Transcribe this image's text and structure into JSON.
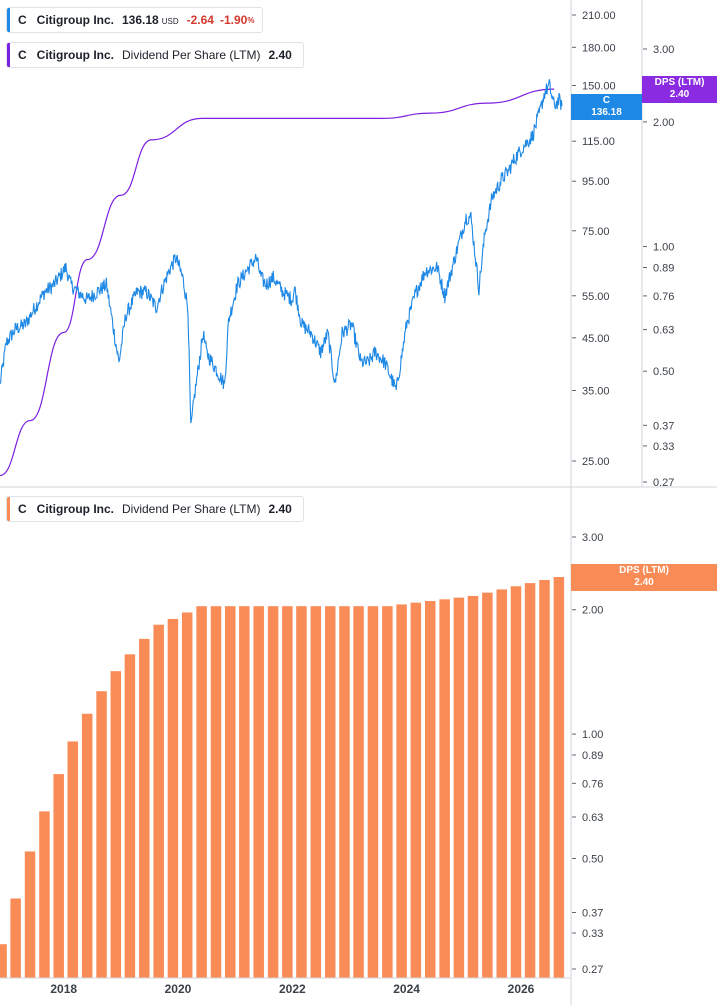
{
  "legend_price": {
    "ticker": "C",
    "name": "Citigroup Inc.",
    "value": "136.18",
    "currency": "USD",
    "change": "-2.64",
    "change_pct": "-1.90",
    "pct_sign": "%",
    "color": "#1e88e5"
  },
  "legend_dps_top": {
    "ticker": "C",
    "name": "Citigroup Inc.",
    "metric": "Dividend Per Share (LTM)",
    "value": "2.40",
    "color": "#7b1fe0"
  },
  "legend_dps_bottom": {
    "ticker": "C",
    "name": "Citigroup Inc.",
    "metric": "Dividend Per Share (LTM)",
    "value": "2.40",
    "color": "#f98b57"
  },
  "tags": {
    "price": {
      "label": "C",
      "value": "136.18",
      "color": "#1e88e5"
    },
    "dps_top": {
      "label": "DPS (LTM)",
      "value": "2.40",
      "color": "#8a2be2"
    },
    "dps_bottom": {
      "label": "DPS (LTM)",
      "value": "2.40",
      "color": "#f98b57"
    }
  },
  "chart_data": [
    {
      "type": "line",
      "xlabel": "",
      "ylabel": "",
      "x_range": [
        "2016-11-20",
        "2026-11-10"
      ],
      "y_scale": "log",
      "price_ylim": [
        22,
        240
      ],
      "price_ticks": [
        "210.00",
        "180.00",
        "150.00",
        "115.00",
        "95.00",
        "75.00",
        "55.00",
        "45.00",
        "35.00",
        "25.00"
      ],
      "dps_ylim": [
        0.26,
        3.5
      ],
      "dps_ticks": [
        "3.00",
        "2.00",
        "1.00",
        "0.89",
        "0.76",
        "0.63",
        "0.50",
        "0.37",
        "0.33",
        "0.27"
      ],
      "series": [
        {
          "name": "Citigroup Inc.",
          "color": "#1e88e5",
          "points": [
            [
              "2016-11-20",
              36
            ],
            [
              "2016-12-31",
              44
            ],
            [
              "2017-03-01",
              47
            ],
            [
              "2017-05-01",
              48
            ],
            [
              "2017-07-01",
              52
            ],
            [
              "2017-09-01",
              56
            ],
            [
              "2017-11-01",
              58
            ],
            [
              "2018-01-15",
              63
            ],
            [
              "2018-02-15",
              58
            ],
            [
              "2018-04-01",
              56
            ],
            [
              "2018-06-01",
              54
            ],
            [
              "2018-08-01",
              56
            ],
            [
              "2018-10-01",
              58
            ],
            [
              "2018-12-20",
              40
            ],
            [
              "2019-02-01",
              50
            ],
            [
              "2019-04-15",
              56
            ],
            [
              "2019-06-15",
              56
            ],
            [
              "2019-08-15",
              52
            ],
            [
              "2019-10-01",
              58
            ],
            [
              "2019-11-15",
              63
            ],
            [
              "2019-12-20",
              66
            ],
            [
              "2020-01-31",
              60
            ],
            [
              "2020-03-05",
              52
            ],
            [
              "2020-03-23",
              29
            ],
            [
              "2020-04-15",
              34
            ],
            [
              "2020-06-10",
              46
            ],
            [
              "2020-07-01",
              42
            ],
            [
              "2020-09-15",
              38
            ],
            [
              "2020-10-25",
              36
            ],
            [
              "2020-11-20",
              49
            ],
            [
              "2021-01-15",
              58
            ],
            [
              "2021-03-15",
              62
            ],
            [
              "2021-05-15",
              66
            ],
            [
              "2021-06-15",
              60
            ],
            [
              "2021-07-15",
              58
            ],
            [
              "2021-09-01",
              60
            ],
            [
              "2021-11-01",
              56
            ],
            [
              "2022-01-01",
              54
            ],
            [
              "2022-01-15",
              57
            ],
            [
              "2022-03-01",
              48
            ],
            [
              "2022-05-01",
              46
            ],
            [
              "2022-07-01",
              42
            ],
            [
              "2022-08-15",
              46
            ],
            [
              "2022-10-01",
              36
            ],
            [
              "2022-11-15",
              46
            ],
            [
              "2023-01-15",
              48
            ],
            [
              "2023-03-15",
              40
            ],
            [
              "2023-05-01",
              40
            ],
            [
              "2023-06-15",
              42
            ],
            [
              "2023-08-15",
              40
            ],
            [
              "2023-10-27",
              35
            ],
            [
              "2024-01-01",
              48
            ],
            [
              "2024-03-01",
              56
            ],
            [
              "2024-05-01",
              62
            ],
            [
              "2024-07-15",
              63
            ],
            [
              "2024-09-01",
              55
            ],
            [
              "2024-11-15",
              68
            ],
            [
              "2025-01-15",
              80
            ],
            [
              "2025-02-15",
              80
            ],
            [
              "2025-04-07",
              57
            ],
            [
              "2025-05-15",
              74
            ],
            [
              "2025-07-01",
              88
            ],
            [
              "2025-09-01",
              96
            ],
            [
              "2025-10-15",
              100
            ],
            [
              "2025-11-15",
              105
            ],
            [
              "2026-01-15",
              112
            ],
            [
              "2026-03-15",
              118
            ],
            [
              "2026-05-01",
              132
            ],
            [
              "2026-06-01",
              145
            ],
            [
              "2026-07-01",
              150
            ],
            [
              "2026-08-01",
              136
            ],
            [
              "2026-09-01",
              140
            ],
            [
              "2026-09-20",
              136.18
            ]
          ]
        },
        {
          "name": "Dividend Per Share (LTM)",
          "color": "#7b1fe0",
          "points": [
            [
              "2016-11-20",
              0.28
            ],
            [
              "2017-06-01",
              0.38
            ],
            [
              "2018-01-01",
              0.62
            ],
            [
              "2018-06-01",
              0.93
            ],
            [
              "2019-01-01",
              1.33
            ],
            [
              "2019-07-15",
              1.81
            ],
            [
              "2020-06-01",
              2.04
            ],
            [
              "2021-06-01",
              2.04
            ],
            [
              "2022-06-01",
              2.04
            ],
            [
              "2023-08-01",
              2.04
            ],
            [
              "2024-06-01",
              2.1
            ],
            [
              "2025-06-01",
              2.22
            ],
            [
              "2026-08-01",
              2.4
            ]
          ]
        }
      ]
    },
    {
      "type": "bar",
      "xlabel": "",
      "ylabel": "",
      "x_range": [
        "2016-11-20",
        "2026-11-10"
      ],
      "y_scale": "log",
      "ylim": [
        0.26,
        3.5
      ],
      "y_ticks": [
        "3.00",
        "2.00",
        "1.00",
        "0.89",
        "0.76",
        "0.63",
        "0.50",
        "0.37",
        "0.33",
        "0.27"
      ],
      "x_ticks": [
        "2018",
        "2020",
        "2022",
        "2024",
        "2026"
      ],
      "color": "#f98b57",
      "series": [
        {
          "name": "Dividend Per Share (LTM)",
          "points": [
            [
              "2016-11-30",
              0.31
            ],
            [
              "2017-02-28",
              0.4
            ],
            [
              "2017-05-31",
              0.52
            ],
            [
              "2017-08-31",
              0.65
            ],
            [
              "2017-11-30",
              0.8
            ],
            [
              "2018-02-28",
              0.96
            ],
            [
              "2018-05-31",
              1.12
            ],
            [
              "2018-08-31",
              1.27
            ],
            [
              "2018-11-30",
              1.42
            ],
            [
              "2019-02-28",
              1.56
            ],
            [
              "2019-05-31",
              1.7
            ],
            [
              "2019-08-31",
              1.84
            ],
            [
              "2019-11-30",
              1.9
            ],
            [
              "2020-02-29",
              1.97
            ],
            [
              "2020-05-31",
              2.04
            ],
            [
              "2020-08-31",
              2.04
            ],
            [
              "2020-11-30",
              2.04
            ],
            [
              "2021-02-28",
              2.04
            ],
            [
              "2021-05-31",
              2.04
            ],
            [
              "2021-08-31",
              2.04
            ],
            [
              "2021-11-30",
              2.04
            ],
            [
              "2022-02-28",
              2.04
            ],
            [
              "2022-05-31",
              2.04
            ],
            [
              "2022-08-31",
              2.04
            ],
            [
              "2022-11-30",
              2.04
            ],
            [
              "2023-02-28",
              2.04
            ],
            [
              "2023-05-31",
              2.04
            ],
            [
              "2023-08-31",
              2.04
            ],
            [
              "2023-11-30",
              2.06
            ],
            [
              "2024-02-29",
              2.08
            ],
            [
              "2024-05-31",
              2.1
            ],
            [
              "2024-08-31",
              2.12
            ],
            [
              "2024-11-30",
              2.14
            ],
            [
              "2025-02-28",
              2.16
            ],
            [
              "2025-05-31",
              2.2
            ],
            [
              "2025-08-31",
              2.24
            ],
            [
              "2025-11-30",
              2.28
            ],
            [
              "2026-02-28",
              2.32
            ],
            [
              "2026-05-31",
              2.36
            ],
            [
              "2026-08-31",
              2.4
            ]
          ]
        }
      ]
    }
  ]
}
